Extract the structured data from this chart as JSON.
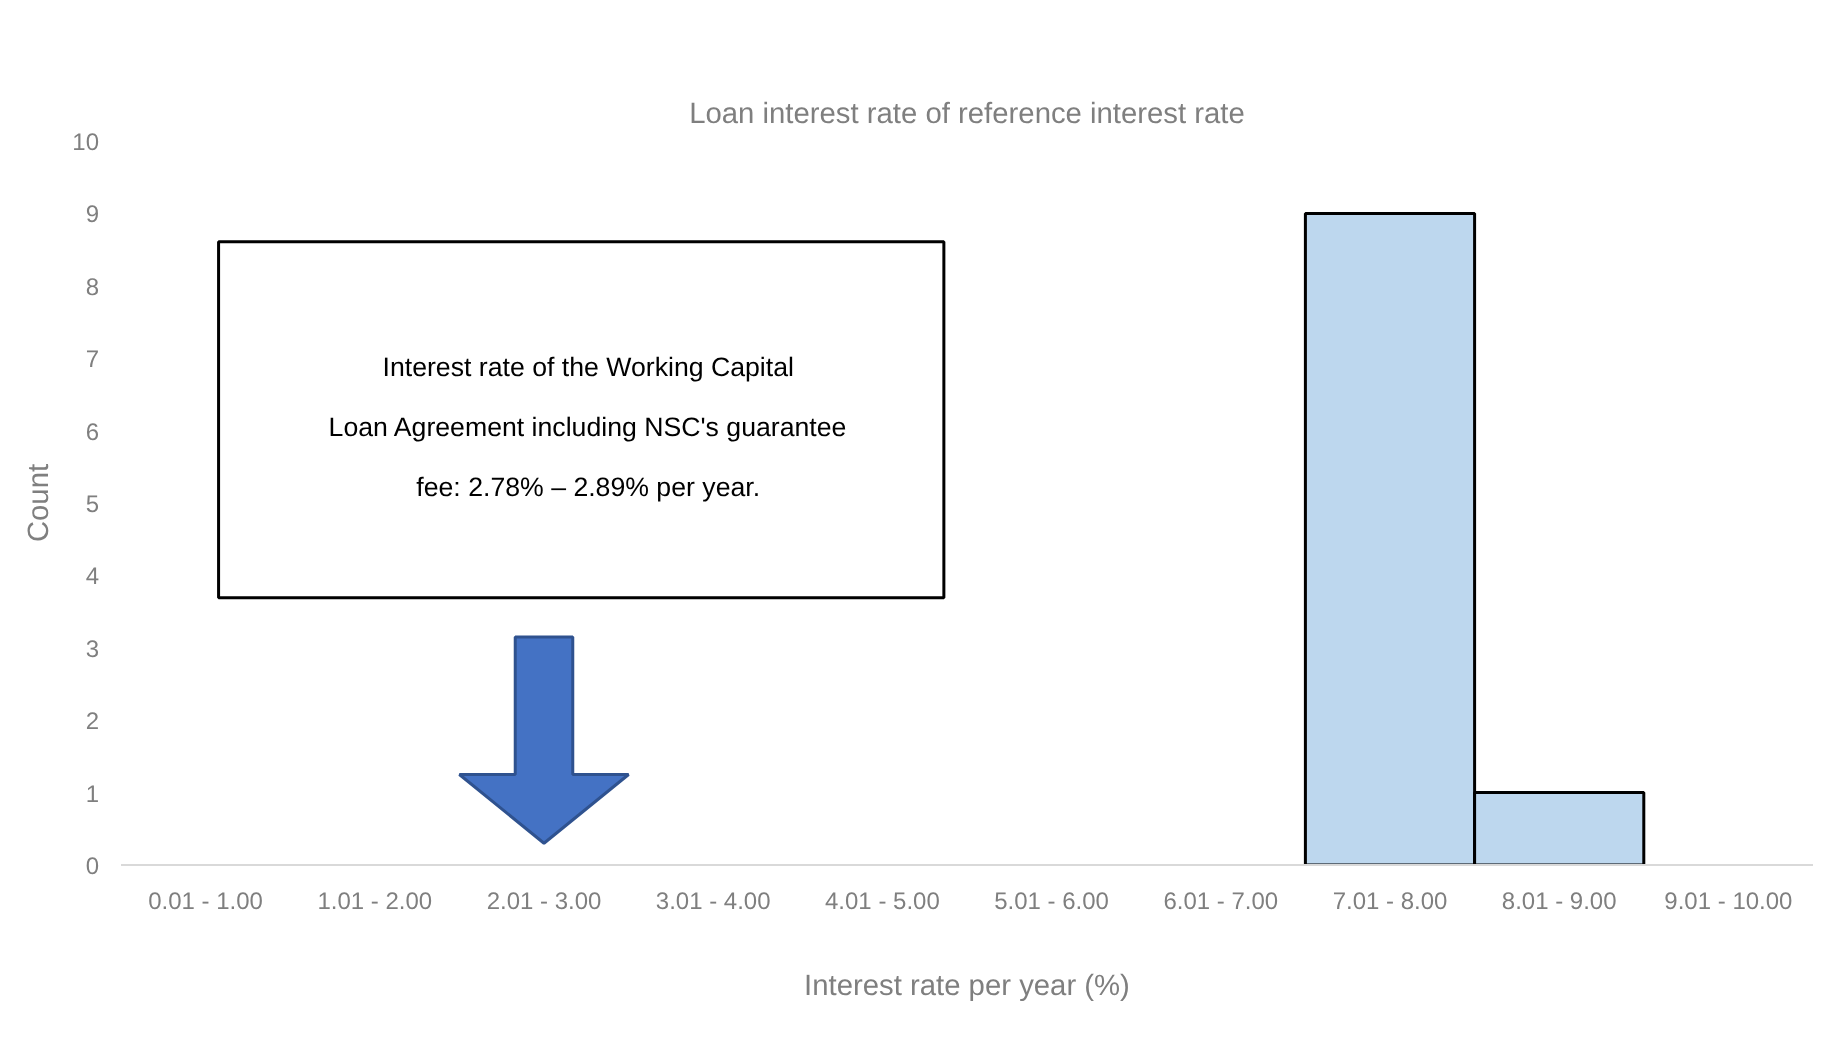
{
  "chart_data": {
    "type": "bar",
    "title": "Loan interest rate of reference interest rate",
    "xlabel": "Interest rate per year (%)",
    "ylabel": "Count",
    "categories": [
      "0.01 - 1.00",
      "1.01 - 2.00",
      "2.01 - 3.00",
      "3.01 - 4.00",
      "4.01 - 5.00",
      "5.01 - 6.00",
      "6.01 - 7.00",
      "7.01 - 8.00",
      "8.01 - 9.00",
      "9.01 - 10.00"
    ],
    "values": [
      0,
      0,
      0,
      0,
      0,
      0,
      0,
      9,
      1,
      0
    ],
    "color": "#bdd7ee",
    "ylim": [
      0,
      10
    ],
    "yticks": [
      0,
      1,
      2,
      3,
      4,
      5,
      6,
      7,
      8,
      9,
      10
    ],
    "grid": false,
    "annotations": [
      "Interest rate of the Working Capital Loan Agreement including NSC's guarantee fee: 2.78% – 2.89% per year."
    ]
  }
}
